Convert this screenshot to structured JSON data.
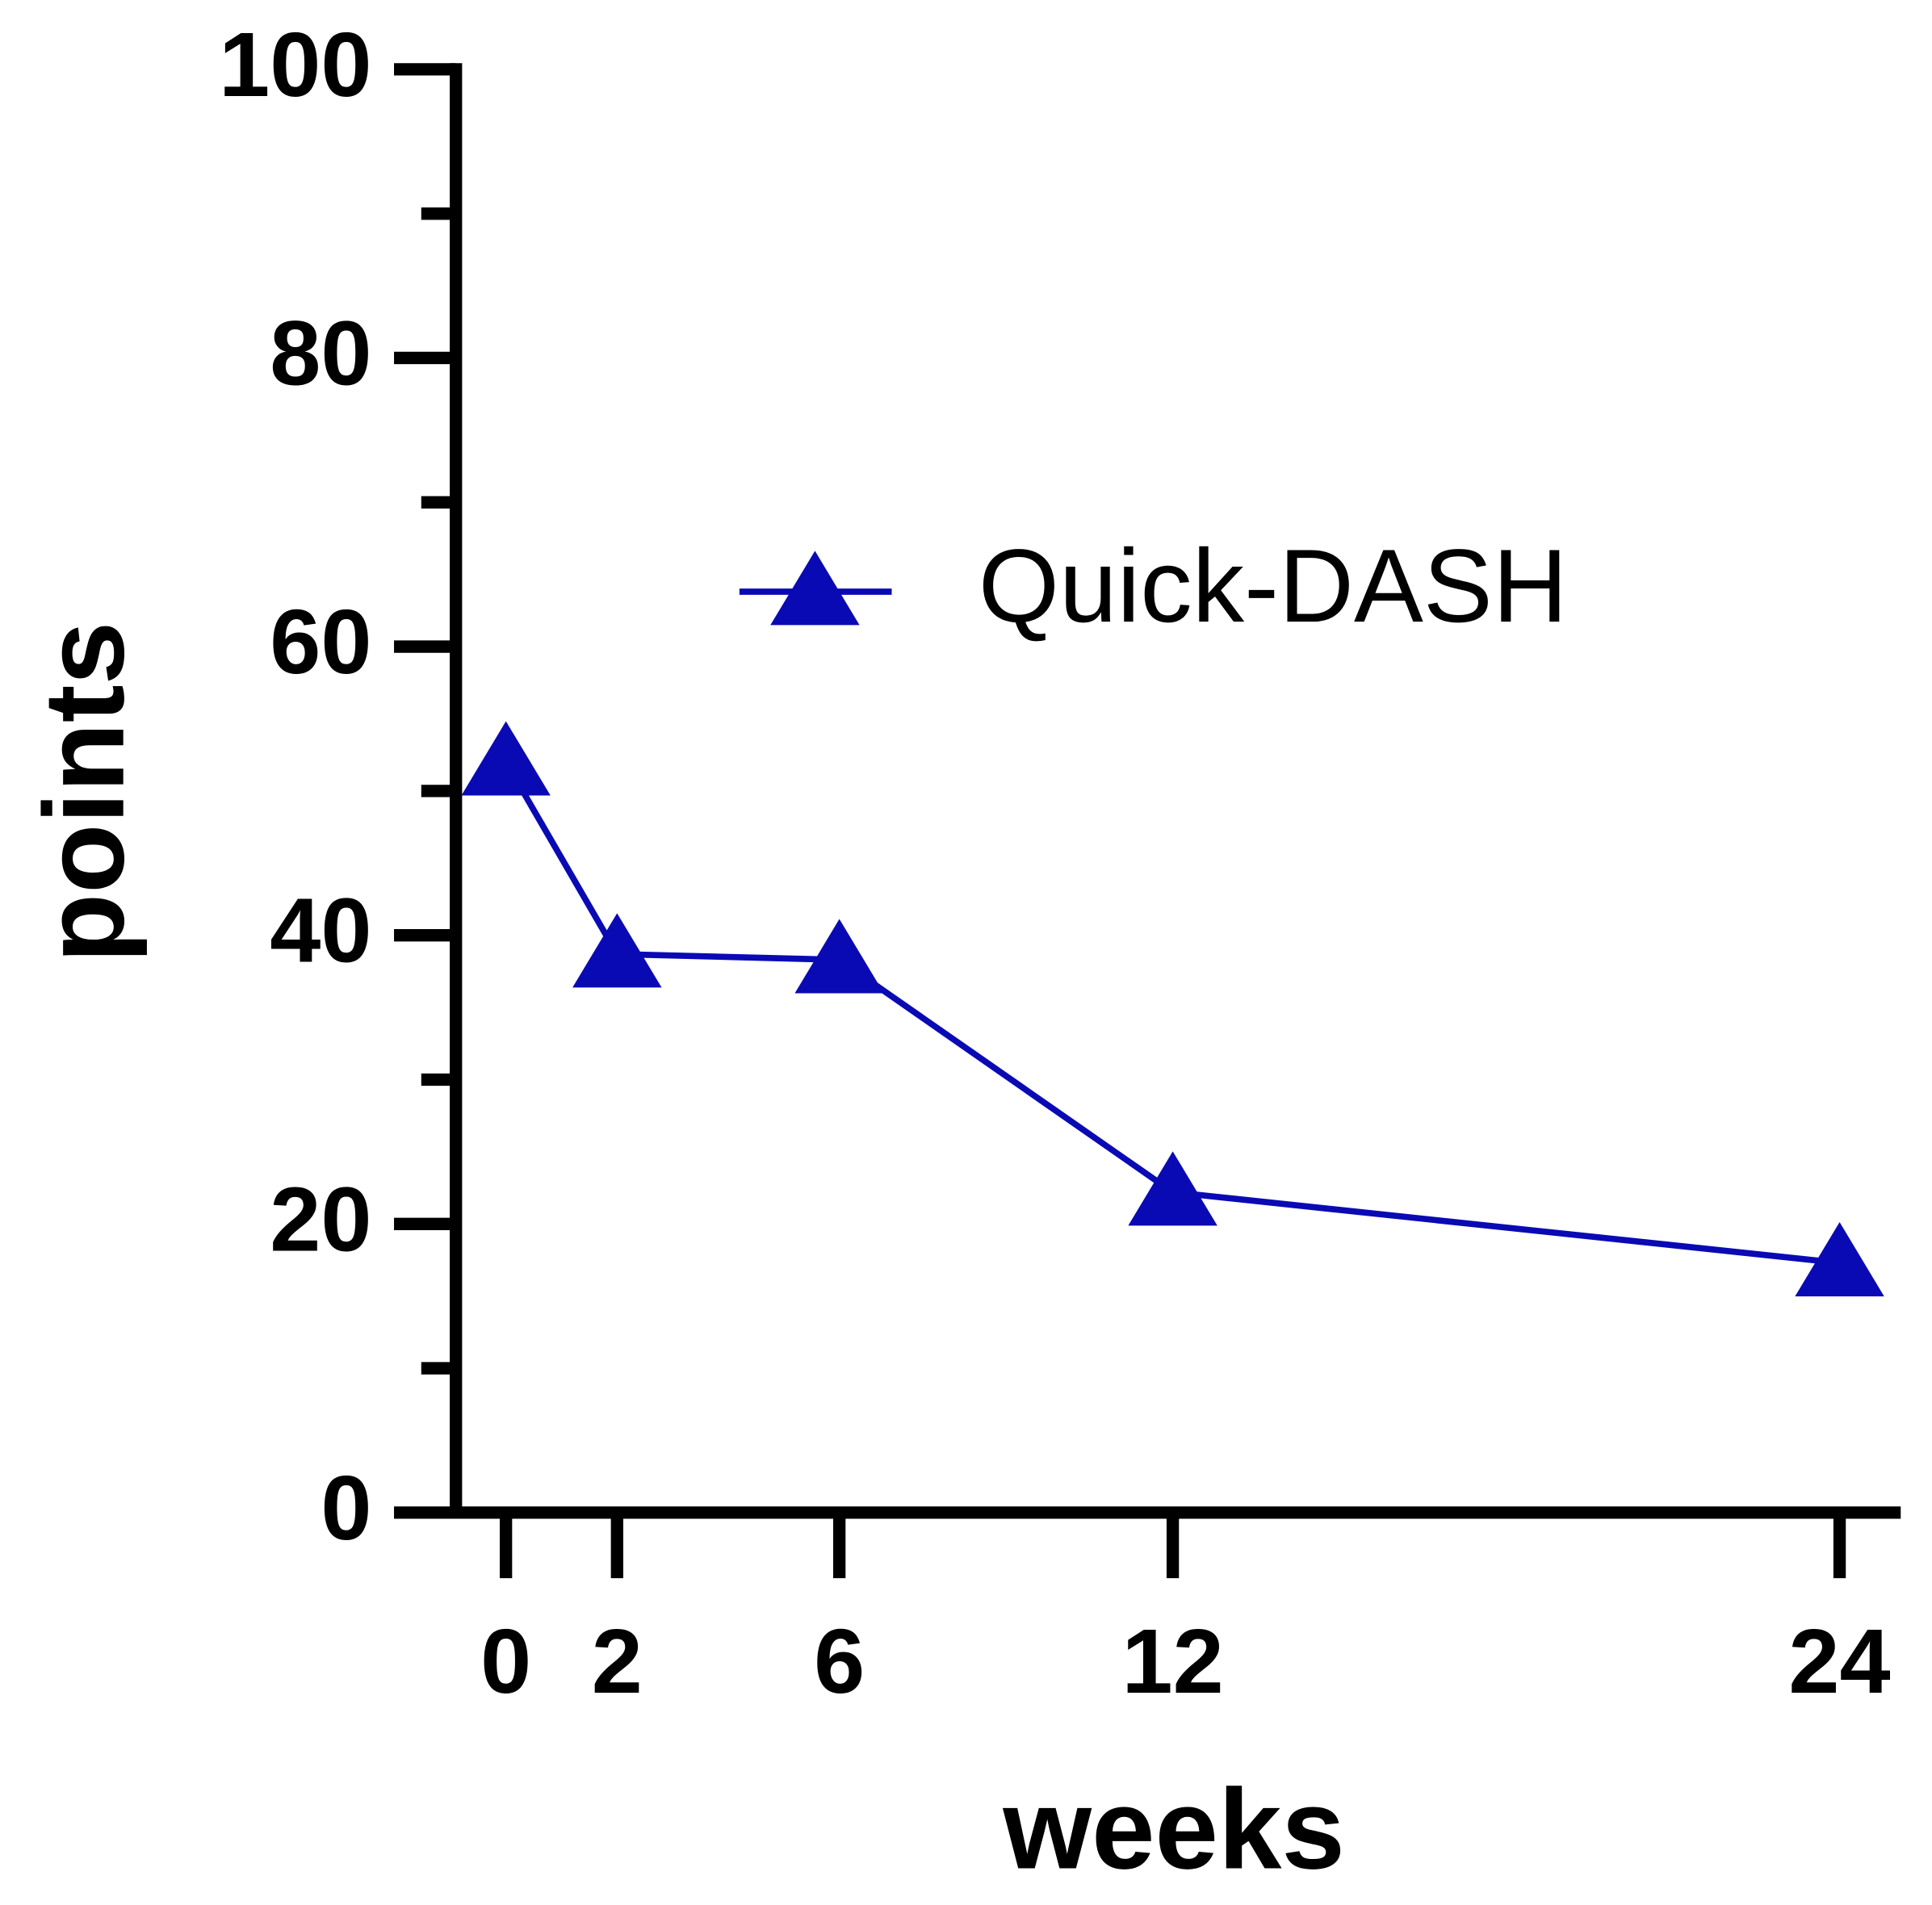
{
  "chart_data": {
    "type": "line",
    "x_label": "weeks",
    "y_label": "points",
    "x": [
      0,
      2,
      6,
      12,
      24
    ],
    "series": [
      {
        "name": "Quick-DASH",
        "color": "#0a0ab4",
        "values": [
          52,
          38.7,
          38.3,
          22.2,
          17.3
        ]
      }
    ],
    "xlim": [
      -0.9,
      25.1
    ],
    "xticks": [
      0,
      2,
      6,
      12,
      24
    ],
    "ylim": [
      0,
      100
    ],
    "yticks": [
      0,
      20,
      40,
      60,
      80,
      100
    ],
    "yminorticks": [
      10,
      30,
      50,
      70,
      90
    ],
    "legend": "upper right",
    "marker": "triangle"
  }
}
